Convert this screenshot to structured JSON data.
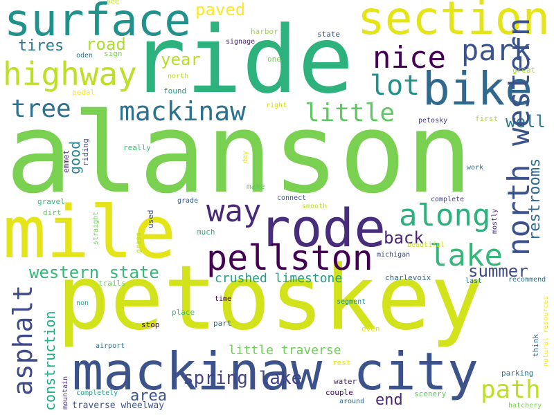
{
  "words": [
    {
      "text": "alanson",
      "color": "#7ad151"
    },
    {
      "text": "petoskey",
      "color": "#d2e21b"
    },
    {
      "text": "ride",
      "color": "#2db27d"
    },
    {
      "text": "mile",
      "color": "#e5e419"
    },
    {
      "text": "mackinaw city",
      "color": "#3b528b"
    },
    {
      "text": "rode",
      "color": "#472d7b"
    },
    {
      "text": "surface",
      "color": "#21918c"
    },
    {
      "text": "section",
      "color": "#e5e419"
    },
    {
      "text": "bike",
      "color": "#31688e"
    },
    {
      "text": "pellston",
      "color": "#440154"
    },
    {
      "text": "highway",
      "color": "#bddf26"
    },
    {
      "text": "park",
      "color": "#3b528b"
    },
    {
      "text": "nice",
      "color": "#440154"
    },
    {
      "text": "mackinaw",
      "color": "#2c728e"
    },
    {
      "text": "way",
      "color": "#482878"
    },
    {
      "text": "along",
      "color": "#2db27d"
    },
    {
      "text": "lake",
      "color": "#35b779"
    },
    {
      "text": "little",
      "color": "#5ec962"
    },
    {
      "text": "lot",
      "color": "#21918c"
    },
    {
      "text": "tree",
      "color": "#2c728e"
    },
    {
      "text": "spring lake",
      "color": "#414487"
    },
    {
      "text": "path",
      "color": "#bddf26"
    },
    {
      "text": "asphalt",
      "color": "#3e4a89"
    },
    {
      "text": "paved",
      "color": "#fde725"
    },
    {
      "text": "western state",
      "color": "#35b779"
    },
    {
      "text": "north western",
      "color": "#3b528b"
    },
    {
      "text": "restrooms",
      "color": "#31688e"
    },
    {
      "text": "construction",
      "color": "#25ac82"
    },
    {
      "text": "back",
      "color": "#482475"
    },
    {
      "text": "summer",
      "color": "#3e4a89"
    },
    {
      "text": "area",
      "color": "#3b528b"
    },
    {
      "text": "crushed limestone",
      "color": "#1f9e89"
    },
    {
      "text": "year",
      "color": "#b5de2b"
    },
    {
      "text": "road",
      "color": "#addc30"
    },
    {
      "text": "tires",
      "color": "#2a788e"
    },
    {
      "text": "well",
      "color": "#2a788e"
    },
    {
      "text": "good",
      "color": "#26828e"
    },
    {
      "text": "little traverse",
      "color": "#6ece58"
    },
    {
      "text": "end",
      "color": "#482475"
    },
    {
      "text": "see",
      "color": "#c2df23"
    },
    {
      "text": "harbor",
      "color": "#a0da39"
    },
    {
      "text": "state",
      "color": "#3b528b"
    },
    {
      "text": "signage",
      "color": "#481f70"
    },
    {
      "text": "oden",
      "color": "#2a788e"
    },
    {
      "text": "sign",
      "color": "#7ad151"
    },
    {
      "text": "one",
      "color": "#6ece58"
    },
    {
      "text": "great",
      "color": "#a5db36"
    },
    {
      "text": "pedal",
      "color": "#fde725"
    },
    {
      "text": "north",
      "color": "#b8de29"
    },
    {
      "text": "found",
      "color": "#1f9a8a"
    },
    {
      "text": "right",
      "color": "#dde318"
    },
    {
      "text": "first",
      "color": "#addc30"
    },
    {
      "text": "petosky",
      "color": "#443983"
    },
    {
      "text": "emmet",
      "color": "#482878"
    },
    {
      "text": "riding",
      "color": "#3e4a89"
    },
    {
      "text": "really",
      "color": "#3fbc73"
    },
    {
      "text": "day",
      "color": "#e2e418"
    },
    {
      "text": "work",
      "color": "#2f6c8e"
    },
    {
      "text": "make",
      "color": "#5ec962"
    },
    {
      "text": "gravel",
      "color": "#35b779"
    },
    {
      "text": "dirt",
      "color": "#5ec962"
    },
    {
      "text": "grade",
      "color": "#355f8d"
    },
    {
      "text": "connect",
      "color": "#3b528b"
    },
    {
      "text": "complete",
      "color": "#433e85"
    },
    {
      "text": "smooth",
      "color": "#bddf26"
    },
    {
      "text": "mostly",
      "color": "#472d7b"
    },
    {
      "text": "used",
      "color": "#3b528b"
    },
    {
      "text": "straight",
      "color": "#6ece58"
    },
    {
      "text": "much",
      "color": "#2db27d"
    },
    {
      "text": "grass",
      "color": "#addc30"
    },
    {
      "text": "beautiful",
      "color": "#d0e11c"
    },
    {
      "text": "michigan",
      "color": "#3e4a89"
    },
    {
      "text": "charlevoix",
      "color": "#31688e"
    },
    {
      "text": "trails",
      "color": "#6ece58"
    },
    {
      "text": "last",
      "color": "#2c728e"
    },
    {
      "text": "recommend",
      "color": "#2c728e"
    },
    {
      "text": "time",
      "color": "#440154"
    },
    {
      "text": "non",
      "color": "#1fa187"
    },
    {
      "text": "place",
      "color": "#3fbc73"
    },
    {
      "text": "segment",
      "color": "#21918c"
    },
    {
      "text": "natural resources",
      "color": "#fde725"
    },
    {
      "text": "stop",
      "color": "#440154"
    },
    {
      "text": "part",
      "color": "#31688e"
    },
    {
      "text": "think",
      "color": "#2c728e"
    },
    {
      "text": "airport",
      "color": "#2c728e"
    },
    {
      "text": "even",
      "color": "#dde318"
    },
    {
      "text": "rest",
      "color": "#e5e419"
    },
    {
      "text": "parking",
      "color": "#2a788e"
    },
    {
      "text": "water",
      "color": "#481f70"
    },
    {
      "text": "mountain",
      "color": "#472d7b"
    },
    {
      "text": "completely",
      "color": "#1e9b8a"
    },
    {
      "text": "couple",
      "color": "#440154"
    },
    {
      "text": "scenery",
      "color": "#5ec962"
    },
    {
      "text": "around",
      "color": "#31688e"
    },
    {
      "text": "traverse wheelway",
      "color": "#3b528b"
    },
    {
      "text": "hatchery",
      "color": "#7ad151"
    }
  ]
}
